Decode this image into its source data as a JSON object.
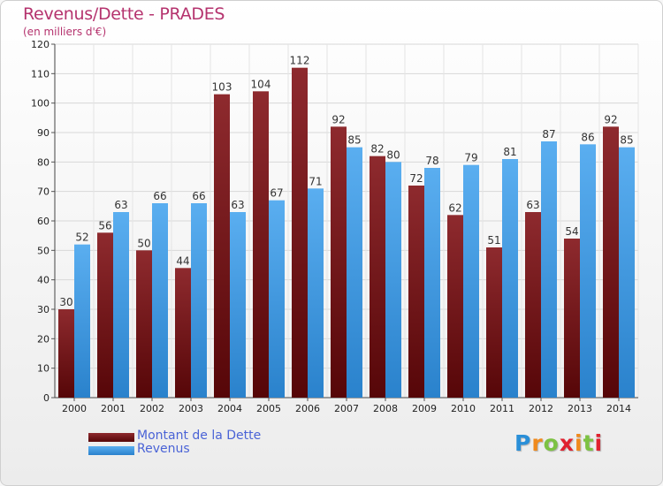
{
  "title": "Revenus/Dette - PRADES",
  "subtitle": "(en milliers d'€)",
  "logo": {
    "letters": [
      "P",
      "r",
      "o",
      "x",
      "i",
      "t",
      "i"
    ],
    "colors": [
      "#2a8fd8",
      "#f08a1c",
      "#7cc242",
      "#e0202e",
      "#f08a1c",
      "#7cc242",
      "#e0202e"
    ]
  },
  "colors": {
    "dette": "#7a1a1e",
    "revenus": "#3d9be6",
    "title": "#b5336e",
    "legend_text": "#4a63d6"
  },
  "chart_data": {
    "type": "bar",
    "title": "Revenus/Dette - PRADES",
    "subtitle": "(en milliers d'€)",
    "xlabel": "",
    "ylabel": "",
    "ylim": [
      0,
      120
    ],
    "yticks": [
      0,
      10,
      20,
      30,
      40,
      50,
      60,
      70,
      80,
      90,
      100,
      110,
      120
    ],
    "grid": true,
    "legend_position": "bottom-left",
    "categories": [
      "2000",
      "2001",
      "2002",
      "2003",
      "2004",
      "2005",
      "2006",
      "2007",
      "2008",
      "2009",
      "2010",
      "2011",
      "2012",
      "2013",
      "2014"
    ],
    "series": [
      {
        "name": "Montant de la Dette",
        "values": [
          30,
          56,
          50,
          44,
          103,
          104,
          112,
          92,
          82,
          72,
          62,
          51,
          63,
          54,
          92
        ]
      },
      {
        "name": "Revenus",
        "values": [
          52,
          63,
          66,
          66,
          63,
          67,
          71,
          85,
          80,
          78,
          79,
          81,
          87,
          86,
          85
        ]
      }
    ]
  }
}
